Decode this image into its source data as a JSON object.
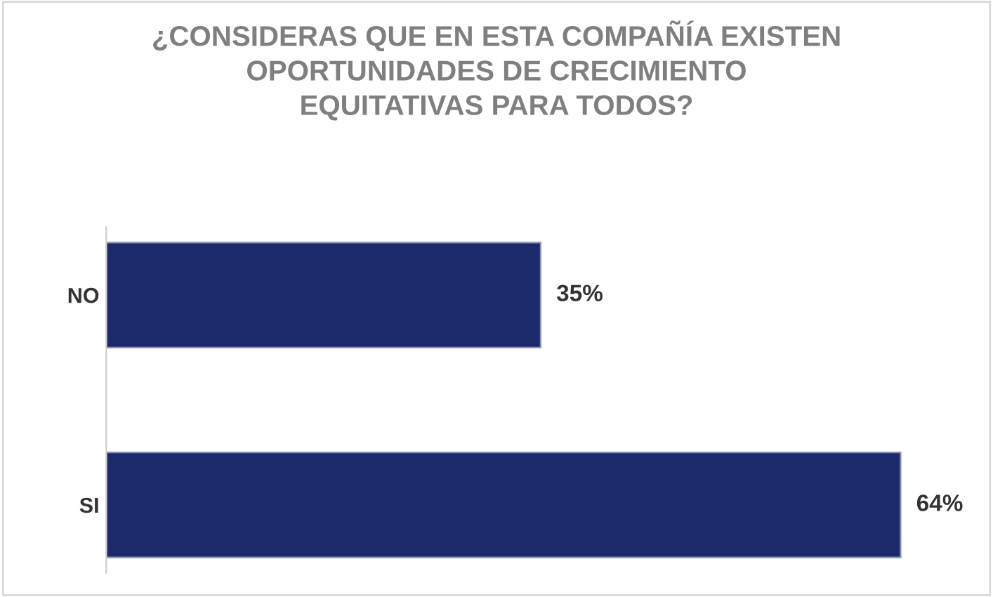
{
  "chart_data": {
    "type": "bar",
    "orientation": "horizontal",
    "title": "¿CONSIDERAS QUE EN ESTA COMPAÑÍA EXISTEN\nOPORTUNIDADES DE CRECIMIENTO\nEQUITATIVAS PARA TODOS?",
    "categories": [
      "NO",
      "SI"
    ],
    "values": [
      35,
      64
    ],
    "value_labels": [
      "35%",
      "64%"
    ],
    "color": "#1b2a6b",
    "tick_labels": "y",
    "grid": false,
    "legend": false
  }
}
